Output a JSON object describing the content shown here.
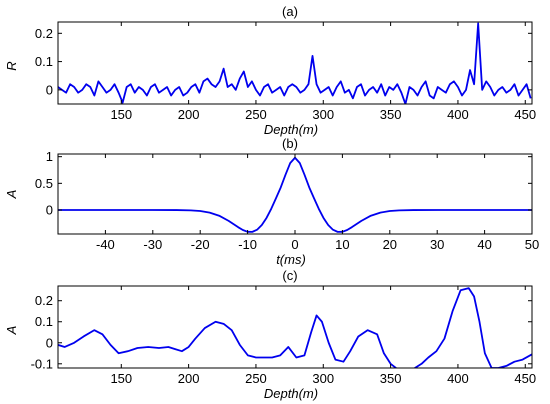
{
  "chart_data": [
    {
      "type": "line",
      "title": "(a)",
      "xlabel": "Depth(m)",
      "ylabel": "R",
      "xlim": [
        103,
        455
      ],
      "ylim": [
        -0.05,
        0.24
      ],
      "xticks": [
        150,
        200,
        250,
        300,
        350,
        400,
        450
      ],
      "yticks": [
        0,
        0.1,
        0.2
      ],
      "ytick_labels": [
        "0",
        "0.1",
        "0.2"
      ],
      "grid": false,
      "color": "#0000ee",
      "series": [
        {
          "x": [
            103,
            106,
            109,
            112,
            115,
            118,
            121,
            124,
            127,
            130,
            133,
            136,
            139,
            142,
            145,
            148,
            151,
            154,
            157,
            160,
            163,
            166,
            169,
            172,
            175,
            178,
            181,
            184,
            187,
            190,
            193,
            196,
            199,
            202,
            205,
            208,
            211,
            214,
            217,
            220,
            223,
            226,
            229,
            232,
            235,
            238,
            241,
            244,
            247,
            250,
            253,
            256,
            259,
            262,
            265,
            268,
            271,
            274,
            277,
            280,
            283,
            286,
            289,
            292,
            295,
            298,
            301,
            304,
            307,
            310,
            313,
            316,
            319,
            322,
            325,
            328,
            331,
            334,
            337,
            340,
            343,
            346,
            349,
            352,
            355,
            358,
            361,
            364,
            367,
            370,
            373,
            376,
            379,
            382,
            385,
            388,
            391,
            394,
            397,
            400,
            403,
            406,
            409,
            412,
            415,
            418,
            421,
            424,
            427,
            430,
            433,
            436,
            439,
            442,
            445,
            448,
            451,
            454
          ],
          "y": [
            0.01,
            0.0,
            -0.01,
            0.02,
            0.01,
            -0.01,
            0.0,
            0.02,
            0.01,
            -0.02,
            0.03,
            0.01,
            -0.01,
            0.0,
            0.02,
            -0.01,
            -0.045,
            0.01,
            0.02,
            -0.01,
            0.01,
            0.0,
            -0.02,
            0.01,
            0.02,
            -0.01,
            0.0,
            0.01,
            -0.02,
            0.0,
            0.01,
            -0.02,
            -0.01,
            0.01,
            0.02,
            -0.01,
            0.03,
            0.04,
            0.02,
            0.01,
            0.03,
            0.075,
            0.01,
            0.02,
            0.0,
            0.04,
            0.065,
            0.01,
            0.03,
            0.0,
            -0.02,
            0.01,
            0.02,
            -0.01,
            0.0,
            0.01,
            -0.02,
            0.01,
            0.02,
            0.01,
            -0.01,
            0.0,
            0.02,
            0.12,
            0.02,
            -0.01,
            0.0,
            0.01,
            -0.02,
            0.01,
            0.03,
            -0.01,
            0.0,
            -0.03,
            0.01,
            0.02,
            -0.02,
            0.0,
            0.01,
            -0.01,
            0.02,
            -0.02,
            0.01,
            0.0,
            0.02,
            -0.01,
            -0.05,
            0.01,
            0.0,
            -0.02,
            0.01,
            0.03,
            -0.02,
            -0.03,
            0.01,
            0.0,
            -0.01,
            0.02,
            0.03,
            0.01,
            -0.02,
            0.0,
            0.07,
            0.02,
            0.235,
            0.0,
            0.03,
            0.01,
            -0.02,
            0.0,
            0.01,
            -0.01,
            0.0,
            0.02,
            -0.02,
            0.0,
            0.02,
            -0.03
          ]
        }
      ]
    },
    {
      "type": "line",
      "title": "(b)",
      "xlabel": "t(ms)",
      "ylabel": "A",
      "xlim": [
        -50,
        50
      ],
      "ylim": [
        -0.45,
        1.05
      ],
      "xticks": [
        -40,
        -30,
        -20,
        -10,
        0,
        10,
        20,
        30,
        40,
        50
      ],
      "yticks": [
        0,
        0.5,
        1
      ],
      "ytick_labels": [
        "0",
        "0.5",
        "1"
      ],
      "grid": false,
      "color": "#0000ee",
      "series": [
        {
          "x": [
            -50,
            -45,
            -40,
            -35,
            -30,
            -25,
            -22,
            -20,
            -18,
            -16,
            -14,
            -12,
            -11,
            -10,
            -9,
            -8,
            -7,
            -6,
            -5,
            -4,
            -3,
            -2,
            -1,
            0,
            1,
            2,
            3,
            4,
            5,
            6,
            7,
            8,
            9,
            10,
            11,
            12,
            14,
            16,
            18,
            20,
            22,
            25,
            30,
            35,
            40,
            45,
            50
          ],
          "y": [
            0,
            0,
            0,
            0,
            0,
            -0.001,
            -0.007,
            -0.019,
            -0.049,
            -0.107,
            -0.204,
            -0.322,
            -0.375,
            -0.409,
            -0.41,
            -0.37,
            -0.282,
            -0.147,
            0.025,
            0.222,
            0.425,
            0.662,
            0.882,
            0.98,
            0.882,
            0.662,
            0.425,
            0.222,
            0.025,
            -0.147,
            -0.282,
            -0.37,
            -0.41,
            -0.409,
            -0.375,
            -0.322,
            -0.204,
            -0.107,
            -0.049,
            -0.019,
            -0.007,
            -0.001,
            0,
            0,
            0,
            0,
            0
          ]
        }
      ]
    },
    {
      "type": "line",
      "title": "(c)",
      "xlabel": "Depth(m)",
      "ylabel": "A",
      "xlim": [
        103,
        455
      ],
      "ylim": [
        -0.12,
        0.27
      ],
      "xticks": [
        150,
        200,
        250,
        300,
        350,
        400,
        450
      ],
      "yticks": [
        -0.1,
        0,
        0.1,
        0.2
      ],
      "ytick_labels": [
        "-0.1",
        "0",
        "0.1",
        "0.2"
      ],
      "grid": false,
      "color": "#0000ee",
      "series": [
        {
          "x": [
            103,
            108,
            115,
            122,
            130,
            136,
            142,
            148,
            155,
            162,
            170,
            178,
            185,
            190,
            195,
            200,
            205,
            212,
            220,
            226,
            232,
            238,
            244,
            250,
            256,
            262,
            268,
            274,
            280,
            286,
            291,
            295,
            299,
            304,
            309,
            315,
            320,
            326,
            333,
            340,
            345,
            350,
            356,
            362,
            368,
            373,
            378,
            384,
            390,
            396,
            402,
            408,
            412,
            416,
            420,
            425,
            430,
            436,
            442,
            448,
            455
          ],
          "y": [
            -0.01,
            -0.02,
            0.0,
            0.03,
            0.06,
            0.04,
            -0.01,
            -0.05,
            -0.04,
            -0.025,
            -0.02,
            -0.025,
            -0.02,
            -0.03,
            -0.04,
            -0.02,
            0.02,
            0.07,
            0.1,
            0.09,
            0.06,
            -0.01,
            -0.06,
            -0.07,
            -0.07,
            -0.07,
            -0.06,
            -0.02,
            -0.07,
            -0.06,
            0.05,
            0.13,
            0.1,
            0.0,
            -0.08,
            -0.09,
            -0.04,
            0.03,
            0.06,
            0.04,
            -0.05,
            -0.1,
            -0.13,
            -0.14,
            -0.12,
            -0.1,
            -0.07,
            -0.04,
            0.02,
            0.15,
            0.25,
            0.26,
            0.22,
            0.1,
            -0.05,
            -0.12,
            -0.12,
            -0.11,
            -0.09,
            -0.08,
            -0.055
          ]
        }
      ]
    }
  ]
}
